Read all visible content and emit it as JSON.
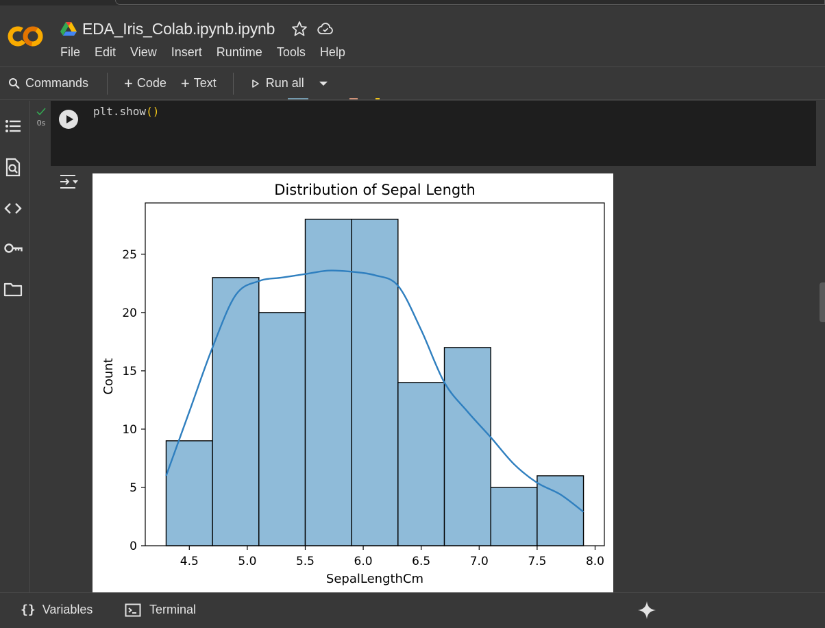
{
  "app": {
    "doc_title": "EDA_Iris_Colab.ipynb.ipynb",
    "logo_text": "CO"
  },
  "menu": [
    "File",
    "Edit",
    "View",
    "Insert",
    "Runtime",
    "Tools",
    "Help"
  ],
  "toolbar": {
    "commands_label": "Commands",
    "code_label": "Code",
    "text_label": "Text",
    "run_all_label": "Run all"
  },
  "cell": {
    "exec_time": "0s",
    "code_prefix": "plt.show",
    "code_parens": "()"
  },
  "statusbar": {
    "variables_label": "Variables",
    "terminal_label": "Terminal"
  },
  "icons": {
    "rail": [
      "table-of-contents-icon",
      "find-replace-icon",
      "code-snippets-icon",
      "secrets-key-icon",
      "files-folder-icon"
    ],
    "run": "play-icon",
    "gemini": "sparkle-icon"
  },
  "colors": {
    "bar_fill": "#8fbbd9",
    "bar_edge": "#000000",
    "kde_line": "#2f7fbf",
    "check": "#34a853"
  },
  "chart_data": {
    "type": "bar",
    "title": "Distribution of Sepal Length",
    "xlabel": "SepalLengthCm",
    "ylabel": "Count",
    "bin_edges": [
      4.3,
      4.7,
      5.1,
      5.5,
      5.9,
      6.3,
      6.7,
      7.1,
      7.5,
      7.9
    ],
    "values": [
      9,
      23,
      20,
      28,
      28,
      14,
      17,
      5,
      6
    ],
    "xlim": [
      4.12,
      8.08
    ],
    "ylim": [
      0,
      29.4
    ],
    "xticks": [
      4.5,
      5.0,
      5.5,
      6.0,
      6.5,
      7.0,
      7.5,
      8.0
    ],
    "xtick_labels": [
      "4.5",
      "5.0",
      "5.5",
      "6.0",
      "6.5",
      "7.0",
      "7.5",
      "8.0"
    ],
    "yticks": [
      0,
      5,
      10,
      15,
      20,
      25
    ],
    "ytick_labels": [
      "0",
      "5",
      "10",
      "15",
      "20",
      "25"
    ],
    "kde": {
      "x": [
        4.3,
        4.5,
        4.7,
        4.9,
        5.1,
        5.3,
        5.5,
        5.7,
        5.9,
        6.1,
        6.3,
        6.5,
        6.7,
        6.9,
        7.1,
        7.3,
        7.5,
        7.7,
        7.9
      ],
      "y": [
        6,
        11.5,
        17,
        21.5,
        22.7,
        23,
        23.3,
        23.6,
        23.5,
        23.2,
        22.3,
        18.5,
        14,
        11.5,
        9.3,
        7,
        5.4,
        4.4,
        2.9
      ]
    },
    "grid": false
  }
}
